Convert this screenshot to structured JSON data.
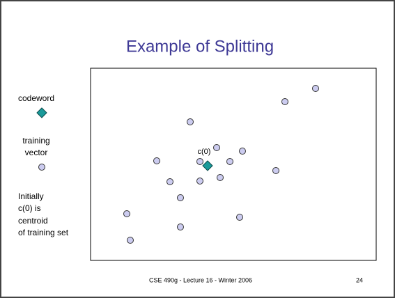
{
  "slide": {
    "title": "Example of Splitting",
    "legend": {
      "codeword": "codeword",
      "training": [
        "training",
        "vector"
      ]
    },
    "note": [
      "Initially",
      "c(0) is",
      "centroid",
      "of training set"
    ],
    "centroid_label": "c(0)",
    "footer": "CSE 490g - Lecture 16 - Winter 2006",
    "page_number": "24"
  }
}
